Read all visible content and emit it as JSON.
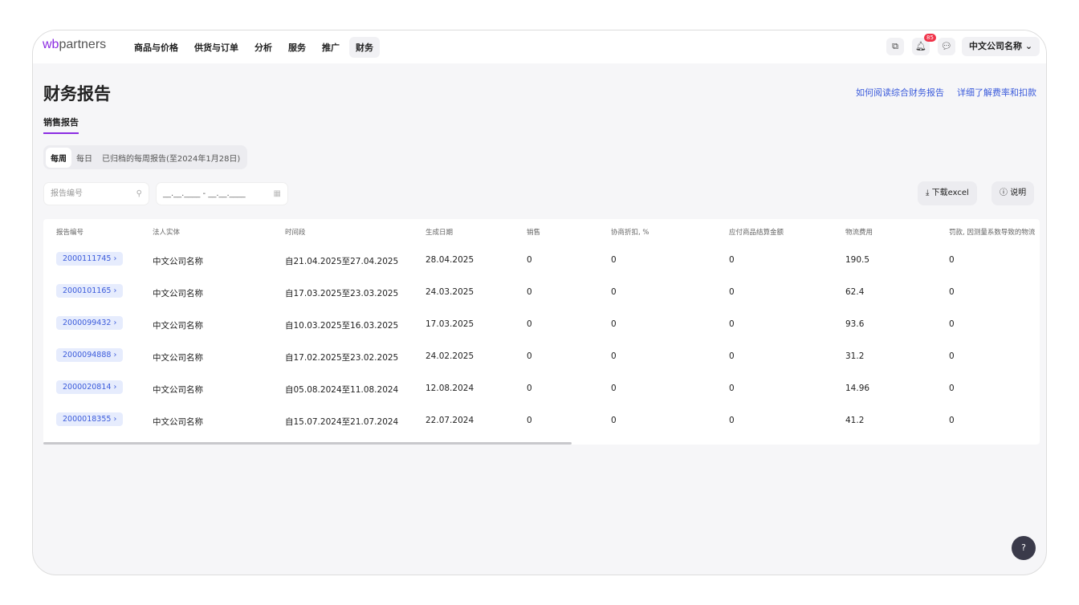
{
  "header": {
    "logo_prefix": "wb",
    "logo_suffix": "partners",
    "nav": [
      "商品与价格",
      "供货与订单",
      "分析",
      "服务",
      "推广",
      "财务"
    ],
    "active_nav": 5,
    "notification_count": "85",
    "account": "中文公司名称"
  },
  "page": {
    "title": "财务报告",
    "links": [
      "如何阅读综合财务报告",
      "详细了解费率和扣款"
    ],
    "subtab": "销售报告"
  },
  "segments": [
    "每周",
    "每日",
    "已归档的每周报告(至2024年1月28日)"
  ],
  "filters": {
    "search_placeholder": "报告编号",
    "date_placeholder": "__.__.____ - __.__.____"
  },
  "buttons": {
    "download": "下载excel",
    "help": "说明"
  },
  "table": {
    "columns": [
      "报告编号",
      "法人实体",
      "时间段",
      "生成日期",
      "销售",
      "协商折扣, %",
      "应付商品结算金额",
      "物流费用",
      "罚款, 因测量系数导致的物流"
    ],
    "rows": [
      [
        "2000111745",
        "中文公司名称",
        "自21.04.2025至27.04.2025",
        "28.04.2025",
        "0",
        "0",
        "0",
        "190.5",
        "0"
      ],
      [
        "2000101165",
        "中文公司名称",
        "自17.03.2025至23.03.2025",
        "24.03.2025",
        "0",
        "0",
        "0",
        "62.4",
        "0"
      ],
      [
        "2000099432",
        "中文公司名称",
        "自10.03.2025至16.03.2025",
        "17.03.2025",
        "0",
        "0",
        "0",
        "93.6",
        "0"
      ],
      [
        "2000094888",
        "中文公司名称",
        "自17.02.2025至23.02.2025",
        "24.02.2025",
        "0",
        "0",
        "0",
        "31.2",
        "0"
      ],
      [
        "2000020814",
        "中文公司名称",
        "自05.08.2024至11.08.2024",
        "12.08.2024",
        "0",
        "0",
        "0",
        "14.96",
        "0"
      ],
      [
        "2000018355",
        "中文公司名称",
        "自15.07.2024至21.07.2024",
        "22.07.2024",
        "0",
        "0",
        "0",
        "41.2",
        "0"
      ]
    ]
  },
  "help_fab": "?"
}
